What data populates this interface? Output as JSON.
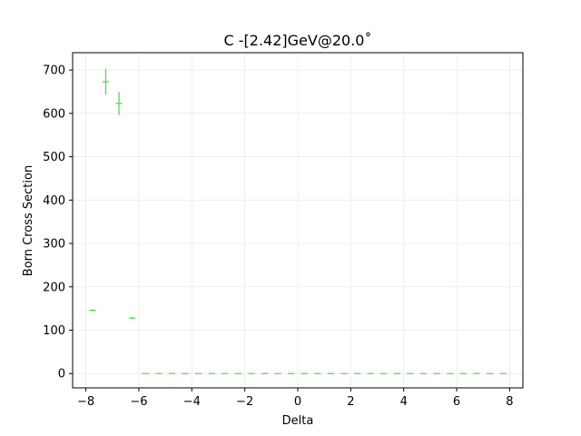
{
  "chart_data": {
    "type": "scatter",
    "title": "C -[2.42]GeV@20.0˚",
    "xlabel": "Delta",
    "ylabel": "Born Cross Section",
    "xlim": [
      -8.5,
      8.5
    ],
    "ylim": [
      -33,
      740
    ],
    "grid": true,
    "color": "#44dd44",
    "xticks": [
      -8,
      -6,
      -4,
      -2,
      0,
      2,
      4,
      6,
      8
    ],
    "xtick_labels": [
      "−8",
      "−6",
      "−4",
      "−2",
      "0",
      "2",
      "4",
      "6",
      "8"
    ],
    "yticks": [
      0,
      100,
      200,
      300,
      400,
      500,
      600,
      700
    ],
    "ytick_labels": [
      "0",
      "100",
      "200",
      "300",
      "400",
      "500",
      "600",
      "700"
    ],
    "points": [
      {
        "x": -7.75,
        "y": 146,
        "err": 2
      },
      {
        "x": -7.25,
        "y": 673,
        "err": 30
      },
      {
        "x": -6.75,
        "y": 623,
        "err": 27
      },
      {
        "x": -6.25,
        "y": 128,
        "err": 2
      },
      {
        "x": -5.75,
        "y": 0,
        "err": 0
      },
      {
        "x": -5.25,
        "y": 0,
        "err": 0
      },
      {
        "x": -4.75,
        "y": 0,
        "err": 0
      },
      {
        "x": -4.25,
        "y": 0,
        "err": 0
      },
      {
        "x": -3.75,
        "y": 0,
        "err": 0
      },
      {
        "x": -3.25,
        "y": 0,
        "err": 0
      },
      {
        "x": -2.75,
        "y": 0,
        "err": 0
      },
      {
        "x": -2.25,
        "y": 0,
        "err": 0
      },
      {
        "x": -1.75,
        "y": 0,
        "err": 0
      },
      {
        "x": -1.25,
        "y": 0,
        "err": 0
      },
      {
        "x": -0.75,
        "y": 0,
        "err": 0
      },
      {
        "x": -0.25,
        "y": 0,
        "err": 0
      },
      {
        "x": 0.25,
        "y": 0,
        "err": 0
      },
      {
        "x": 0.75,
        "y": 0,
        "err": 0
      },
      {
        "x": 1.25,
        "y": 0,
        "err": 0
      },
      {
        "x": 1.75,
        "y": 0,
        "err": 0
      },
      {
        "x": 2.25,
        "y": 0,
        "err": 0
      },
      {
        "x": 2.75,
        "y": 0,
        "err": 0
      },
      {
        "x": 3.25,
        "y": 0,
        "err": 0
      },
      {
        "x": 3.75,
        "y": 0,
        "err": 0
      },
      {
        "x": 4.25,
        "y": 0,
        "err": 0
      },
      {
        "x": 4.75,
        "y": 0,
        "err": 0
      },
      {
        "x": 5.25,
        "y": 0,
        "err": 0
      },
      {
        "x": 5.75,
        "y": 0,
        "err": 0
      },
      {
        "x": 6.25,
        "y": 0,
        "err": 0
      },
      {
        "x": 6.75,
        "y": 0,
        "err": 0
      },
      {
        "x": 7.25,
        "y": 0,
        "err": 0
      },
      {
        "x": 7.75,
        "y": 0,
        "err": 0
      }
    ],
    "bin_halfwidth": 0.125
  }
}
